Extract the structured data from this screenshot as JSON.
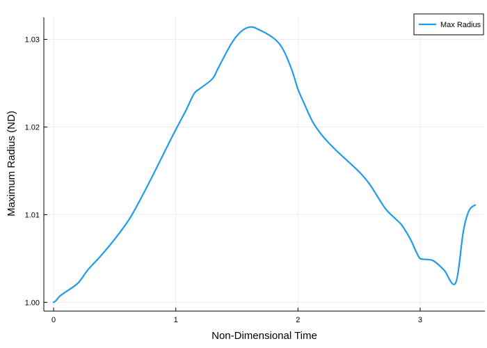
{
  "chart_data": {
    "type": "line",
    "title": "",
    "xlabel": "Non-Dimensional Time",
    "ylabel": "Maximum Radius (ND)",
    "xlim": [
      -0.08,
      3.53
    ],
    "ylim": [
      0.999,
      1.0325
    ],
    "xticks": [
      0,
      1,
      2,
      3
    ],
    "xtick_labels": [
      "0",
      "1",
      "2",
      "3"
    ],
    "yticks": [
      1.0,
      1.01,
      1.02,
      1.03
    ],
    "ytick_labels": [
      "1.00",
      "1.01",
      "1.02",
      "1.03"
    ],
    "grid": true,
    "legend": {
      "position": "top-right",
      "entries": [
        "Max Radius"
      ]
    },
    "series": [
      {
        "name": "Max Radius",
        "color": "#1f9be8",
        "x": [
          0.0,
          0.02,
          0.05,
          0.1,
          0.2,
          0.28,
          0.38,
          0.5,
          0.62,
          0.72,
          0.82,
          0.92,
          1.0,
          1.08,
          1.15,
          1.2,
          1.3,
          1.35,
          1.45,
          1.52,
          1.58,
          1.63,
          1.68,
          1.75,
          1.82,
          1.88,
          1.95,
          2.0,
          2.05,
          2.12,
          2.2,
          2.3,
          2.4,
          2.5,
          2.58,
          2.65,
          2.72,
          2.8,
          2.85,
          2.92,
          2.97,
          3.0,
          3.05,
          3.1,
          3.15,
          3.2,
          3.29,
          3.35,
          3.38,
          3.41,
          3.45
        ],
        "values": [
          1.0,
          1.0002,
          1.0007,
          1.0012,
          1.0022,
          1.0037,
          1.0052,
          1.0072,
          1.0095,
          1.012,
          1.0147,
          1.0175,
          1.0197,
          1.0218,
          1.0238,
          1.0244,
          1.0255,
          1.0268,
          1.0294,
          1.0307,
          1.0313,
          1.0314,
          1.0311,
          1.0306,
          1.0299,
          1.0288,
          1.0265,
          1.0243,
          1.0227,
          1.0206,
          1.019,
          1.0175,
          1.0162,
          1.0149,
          1.0136,
          1.0121,
          1.0106,
          1.0095,
          1.0088,
          1.0072,
          1.0057,
          1.005,
          1.0049,
          1.0048,
          1.0043,
          1.0036,
          1.0022,
          1.0078,
          1.0097,
          1.0107,
          1.0111
        ]
      }
    ]
  }
}
